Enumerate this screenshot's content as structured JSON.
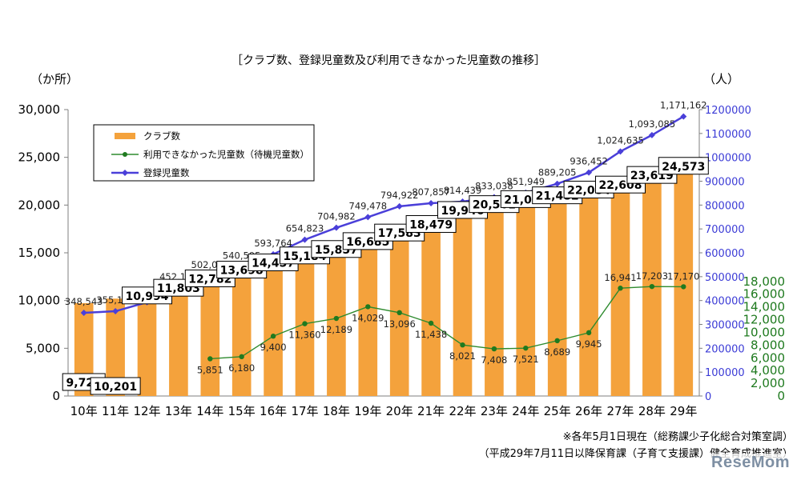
{
  "chart_data": {
    "type": "bar+line",
    "title": "［クラブ数、登録児童数及び利用できなかった児童数の推移］",
    "categories": [
      "10年",
      "11年",
      "12年",
      "13年",
      "14年",
      "15年",
      "16年",
      "17年",
      "18年",
      "19年",
      "20年",
      "21年",
      "22年",
      "23年",
      "24年",
      "25年",
      "26年",
      "27年",
      "28年",
      "29年"
    ],
    "axes": {
      "left": {
        "unit": "（か所）",
        "ylim": [
          0,
          30000
        ],
        "ticks": [
          "0",
          "5,000",
          "10,000",
          "15,000",
          "20,000",
          "25,000",
          "30,000"
        ],
        "color": "#000000"
      },
      "right1": {
        "unit": "（人）",
        "ylim": [
          0,
          1200000
        ],
        "ticks": [
          "0",
          "100000",
          "200000",
          "300000",
          "400000",
          "500000",
          "600000",
          "700000",
          "800000",
          "900000",
          "1000000",
          "1100000",
          "1200000"
        ],
        "color": "#3b3bd6"
      },
      "right2": {
        "ylim": [
          0,
          45000
        ],
        "ticks": [
          "0",
          "2,000",
          "4,000",
          "6,000",
          "8,000",
          "10,000",
          "12,000",
          "14,000",
          "16,000",
          "18,000"
        ],
        "color": "#1f7a1f"
      }
    },
    "legend": {
      "position": "top-left",
      "items": [
        {
          "label": "クラブ数",
          "kind": "bar"
        },
        {
          "label": "利用できなかった児童数（待機児童数）",
          "kind": "line-dot"
        },
        {
          "label": "登録児童数",
          "kind": "line-diamond"
        }
      ]
    },
    "series": [
      {
        "name": "クラブ数",
        "type": "bar",
        "axis": "left",
        "color": "#f4a23c",
        "values": [
          9729,
          10201,
          10994,
          11803,
          12782,
          13698,
          14457,
          15184,
          15857,
          16685,
          17583,
          18479,
          19946,
          20561,
          21085,
          21482,
          22084,
          22608,
          23619,
          24573
        ],
        "labels": [
          "9,729",
          "10,201",
          "10,994",
          "11,803",
          "12,782",
          "13,698",
          "14,457",
          "15,184",
          "15,857",
          "16,685",
          "17,583",
          "18,479",
          "19,946",
          "20,561",
          "21,085",
          "21,482",
          "22,084",
          "22,608",
          "23,619",
          "24,573"
        ]
      },
      {
        "name": "登録児童数",
        "type": "line",
        "axis": "right1",
        "color": "#4a3fd9",
        "values": [
          348543,
          355176,
          392893,
          452135,
          502041,
          540595,
          593764,
          654823,
          704982,
          749478,
          794922,
          807857,
          814439,
          833038,
          851949,
          889205,
          936452,
          1024635,
          1093085,
          1171162
        ],
        "labels": [
          "348,543",
          "355,176",
          "392,893",
          "452,135",
          "502,041",
          "540,595",
          "593,764",
          "654,823",
          "704,982",
          "749,478",
          "794,922",
          "807,857",
          "814,439",
          "833,038",
          "851,949",
          "889,205",
          "936,452",
          "1,024,635",
          "1,093,085",
          "1,171,162"
        ]
      },
      {
        "name": "利用できなかった児童数（待機児童数）",
        "type": "line",
        "axis": "right2",
        "color": "#2e8b2e",
        "values": [
          null,
          null,
          null,
          null,
          5851,
          6180,
          9400,
          11360,
          12189,
          14029,
          13096,
          11438,
          8021,
          7408,
          7521,
          8689,
          9945,
          16941,
          17203,
          17170
        ],
        "labels": [
          null,
          null,
          null,
          null,
          "5,851",
          "6,180",
          "9,400",
          "11,360",
          "12,189",
          "14,029",
          "13,096",
          "11,438",
          "8,021",
          "7,408",
          "7,521",
          "8,689",
          "9,945",
          "16,941",
          "17,203",
          "17,170"
        ]
      }
    ],
    "grid": false
  },
  "notes": [
    "※各年5月1日現在（総務課少子化総合対策室調）",
    "（平成29年7月11日以降保育課（子育て支援課）健全育成推進室）"
  ],
  "watermark": "ReseMom"
}
